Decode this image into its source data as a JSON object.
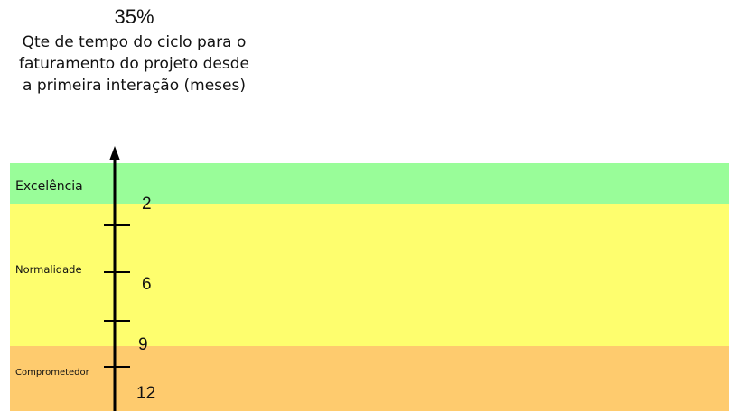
{
  "header": {
    "percent": "35%",
    "axis_title": "Qte de tempo do ciclo para o faturamento do projeto desde a primeira interação (meses)"
  },
  "bands": [
    {
      "label": "Excelência",
      "color": "#99fd99"
    },
    {
      "label": "Normalidade",
      "color": "#fefe6e"
    },
    {
      "label": "Comprometedor",
      "color": "#fecb6e"
    }
  ],
  "axis": {
    "direction": "up",
    "tick_labels": [
      "2",
      "6",
      "9",
      "12"
    ]
  }
}
